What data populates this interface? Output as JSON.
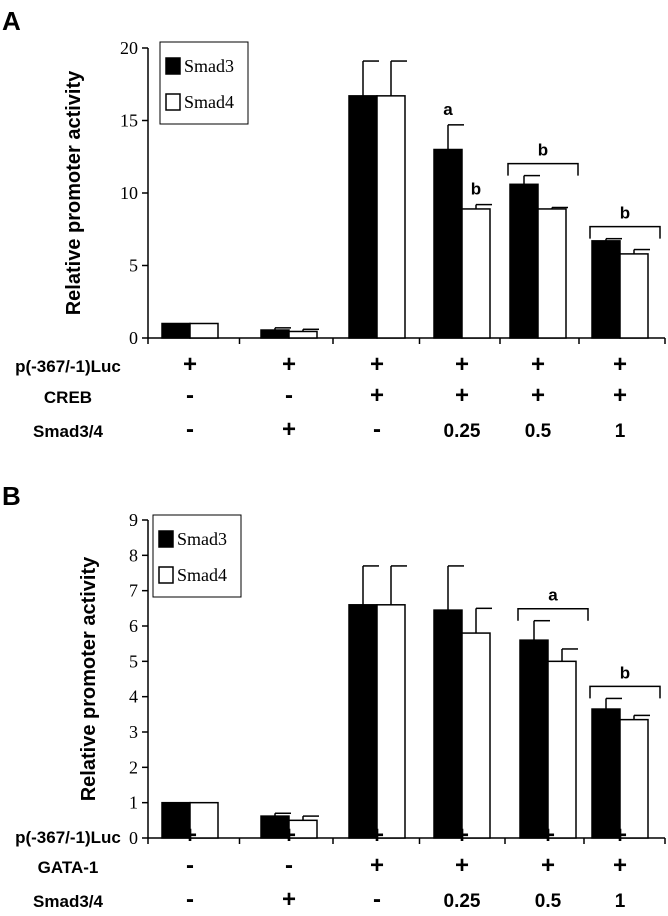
{
  "chart_data": [
    {
      "panel_label": "A",
      "type": "bar",
      "ylabel": "Relative promoter activity",
      "ylim": [
        0,
        20
      ],
      "yticks": [
        "0",
        "5",
        "10",
        "15",
        "20"
      ],
      "grid": false,
      "legend_position": "top-left",
      "series": [
        {
          "name": "Smad3",
          "color": "#000000",
          "values": [
            1.0,
            0.55,
            16.7,
            13.0,
            10.6,
            6.7
          ],
          "errors": [
            0.0,
            0.15,
            2.4,
            1.7,
            0.6,
            0.15
          ]
        },
        {
          "name": "Smad4",
          "color": "#ffffff",
          "values": [
            1.0,
            0.45,
            16.7,
            8.9,
            8.9,
            5.8
          ],
          "errors": [
            0.0,
            0.15,
            2.4,
            0.3,
            0.1,
            0.3
          ]
        }
      ],
      "annotations": [
        {
          "group": 3,
          "series": 0,
          "text": "a"
        },
        {
          "group": 3,
          "series": 1,
          "text": "b"
        },
        {
          "group": 4,
          "bracket": true,
          "text": "b"
        },
        {
          "group": 5,
          "bracket": true,
          "text": "b"
        }
      ],
      "conditions": [
        {
          "label": "p(-367/-1)Luc",
          "values": [
            "+",
            "+",
            "+",
            "+",
            "+",
            "+"
          ]
        },
        {
          "label": "CREB",
          "values": [
            "-",
            "-",
            "+",
            "+",
            "+",
            "+"
          ]
        },
        {
          "label": "Smad3/4",
          "values": [
            "-",
            "+",
            "-",
            "0.25",
            "0.5",
            "1"
          ]
        }
      ]
    },
    {
      "panel_label": "B",
      "type": "bar",
      "ylabel": "Relative promoter activity",
      "ylim": [
        0,
        9
      ],
      "yticks": [
        "0",
        "1",
        "2",
        "3",
        "4",
        "5",
        "6",
        "7",
        "8",
        "9"
      ],
      "grid": false,
      "legend_position": "top-left",
      "series": [
        {
          "name": "Smad3",
          "color": "#000000",
          "values": [
            1.0,
            0.62,
            6.6,
            6.45,
            5.6,
            3.65
          ],
          "errors": [
            0.0,
            0.08,
            1.1,
            1.25,
            0.55,
            0.3
          ]
        },
        {
          "name": "Smad4",
          "color": "#ffffff",
          "values": [
            1.0,
            0.5,
            6.6,
            5.8,
            5.0,
            3.35
          ],
          "errors": [
            0.0,
            0.12,
            1.1,
            0.7,
            0.35,
            0.12
          ]
        }
      ],
      "annotations": [
        {
          "group": 4,
          "bracket": true,
          "text": "a"
        },
        {
          "group": 5,
          "bracket": true,
          "text": "b"
        }
      ],
      "conditions": [
        {
          "label": "p(-367/-1)Luc",
          "values": [
            "+",
            "+",
            "+",
            "+",
            "+",
            "+"
          ]
        },
        {
          "label": "GATA-1",
          "values": [
            "-",
            "-",
            "+",
            "+",
            "+",
            "+"
          ]
        },
        {
          "label": "Smad3/4",
          "values": [
            "-",
            "+",
            "-",
            "0.25",
            "0.5",
            "1"
          ]
        }
      ]
    }
  ]
}
